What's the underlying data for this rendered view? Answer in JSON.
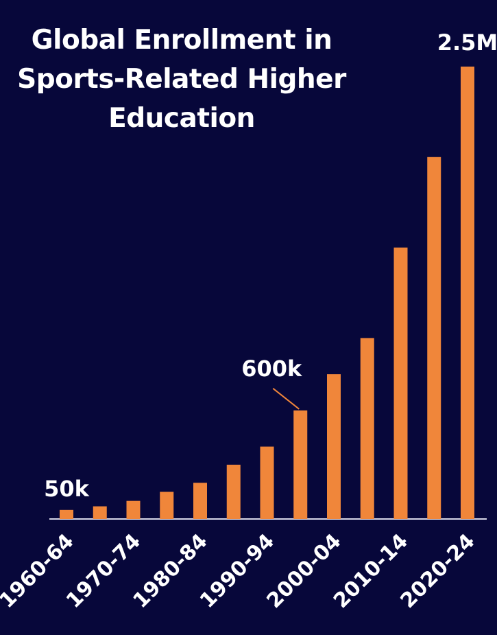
{
  "chart_data": {
    "type": "bar",
    "title": "Global Enrollment in Sports-Related Higher Education",
    "categories": [
      "1960-64",
      null,
      "1970-74",
      null,
      "1980-84",
      null,
      "1990-94",
      null,
      "2000-04",
      null,
      "2010-14",
      null,
      "2020-24"
    ],
    "values": [
      50000,
      70000,
      100000,
      150000,
      200000,
      300000,
      400000,
      600000,
      800000,
      1000000,
      1500000,
      2000000,
      2500000
    ],
    "value_labels": [
      "50k",
      null,
      null,
      null,
      null,
      null,
      null,
      "600k",
      null,
      null,
      null,
      null,
      "2.5M"
    ],
    "color": "#f0863a"
  }
}
